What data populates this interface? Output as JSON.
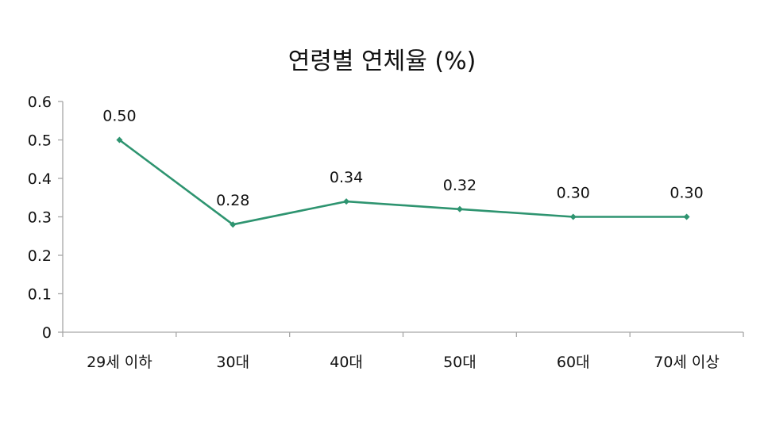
{
  "chart_data": {
    "type": "line",
    "title": "연령별 연체율 (%)",
    "categories": [
      "29세 이하",
      "30대",
      "40대",
      "50대",
      "60대",
      "70세 이상"
    ],
    "series": [
      {
        "values": [
          0.5,
          0.28,
          0.34,
          0.32,
          0.3,
          0.3
        ],
        "data_labels": [
          "0.50",
          "0.28",
          "0.34",
          "0.32",
          "0.30",
          "0.30"
        ]
      }
    ],
    "ylim": [
      0,
      0.6
    ],
    "yticks": [
      "0",
      "0.1",
      "0.2",
      "0.3",
      "0.4",
      "0.5",
      "0.6"
    ],
    "xlabel": "",
    "ylabel": "",
    "grid": false,
    "legend": "none",
    "colors": {
      "line": "#2e9470",
      "axis": "#a6a6a6"
    }
  }
}
